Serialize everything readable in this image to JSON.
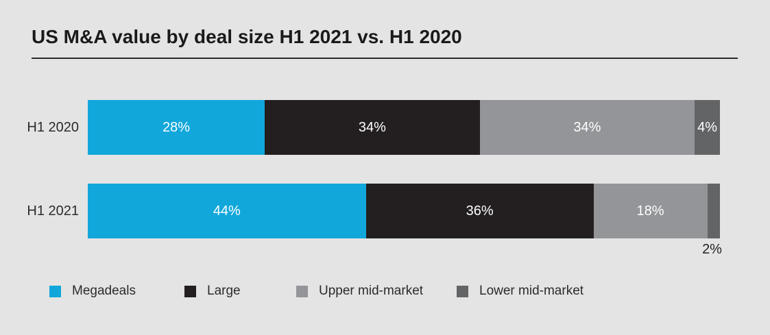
{
  "title": "US M&A value by deal size H1 2021 vs. H1 2020",
  "colors": {
    "background": "#e4e4e4",
    "title_text": "#1a1a1a",
    "category_label_text": "#2b2b2b",
    "title_rule": "#2a2a2a",
    "value_label_inside": "#ffffff",
    "value_label_outside": "#231f20"
  },
  "chart_data": {
    "type": "bar",
    "orientation": "horizontal",
    "stacked": true,
    "unit": "%",
    "xlim": [
      0,
      100
    ],
    "grid": false,
    "title": "US M&A value by deal size H1 2021 vs. H1 2020",
    "categories": [
      "H1 2020",
      "H1 2021"
    ],
    "series": [
      {
        "name": "Megadeals",
        "color": "#11a7db",
        "values": [
          28,
          44
        ]
      },
      {
        "name": "Large",
        "color": "#231f20",
        "values": [
          34,
          36
        ]
      },
      {
        "name": "Upper mid-market",
        "color": "#939598",
        "values": [
          34,
          18
        ]
      },
      {
        "name": "Lower mid-market",
        "color": "#636466",
        "values": [
          4,
          2
        ]
      }
    ],
    "value_labels": [
      [
        "28%",
        "34%",
        "34%",
        "4%"
      ],
      [
        "44%",
        "36%",
        "18%",
        "2%"
      ]
    ],
    "value_label_positions": [
      [
        "inside",
        "inside",
        "inside",
        "inside"
      ],
      [
        "inside",
        "inside",
        "inside",
        "below"
      ]
    ],
    "legend_position": "bottom",
    "legend": [
      "Megadeals",
      "Large",
      "Upper mid-market",
      "Lower mid-market"
    ]
  }
}
